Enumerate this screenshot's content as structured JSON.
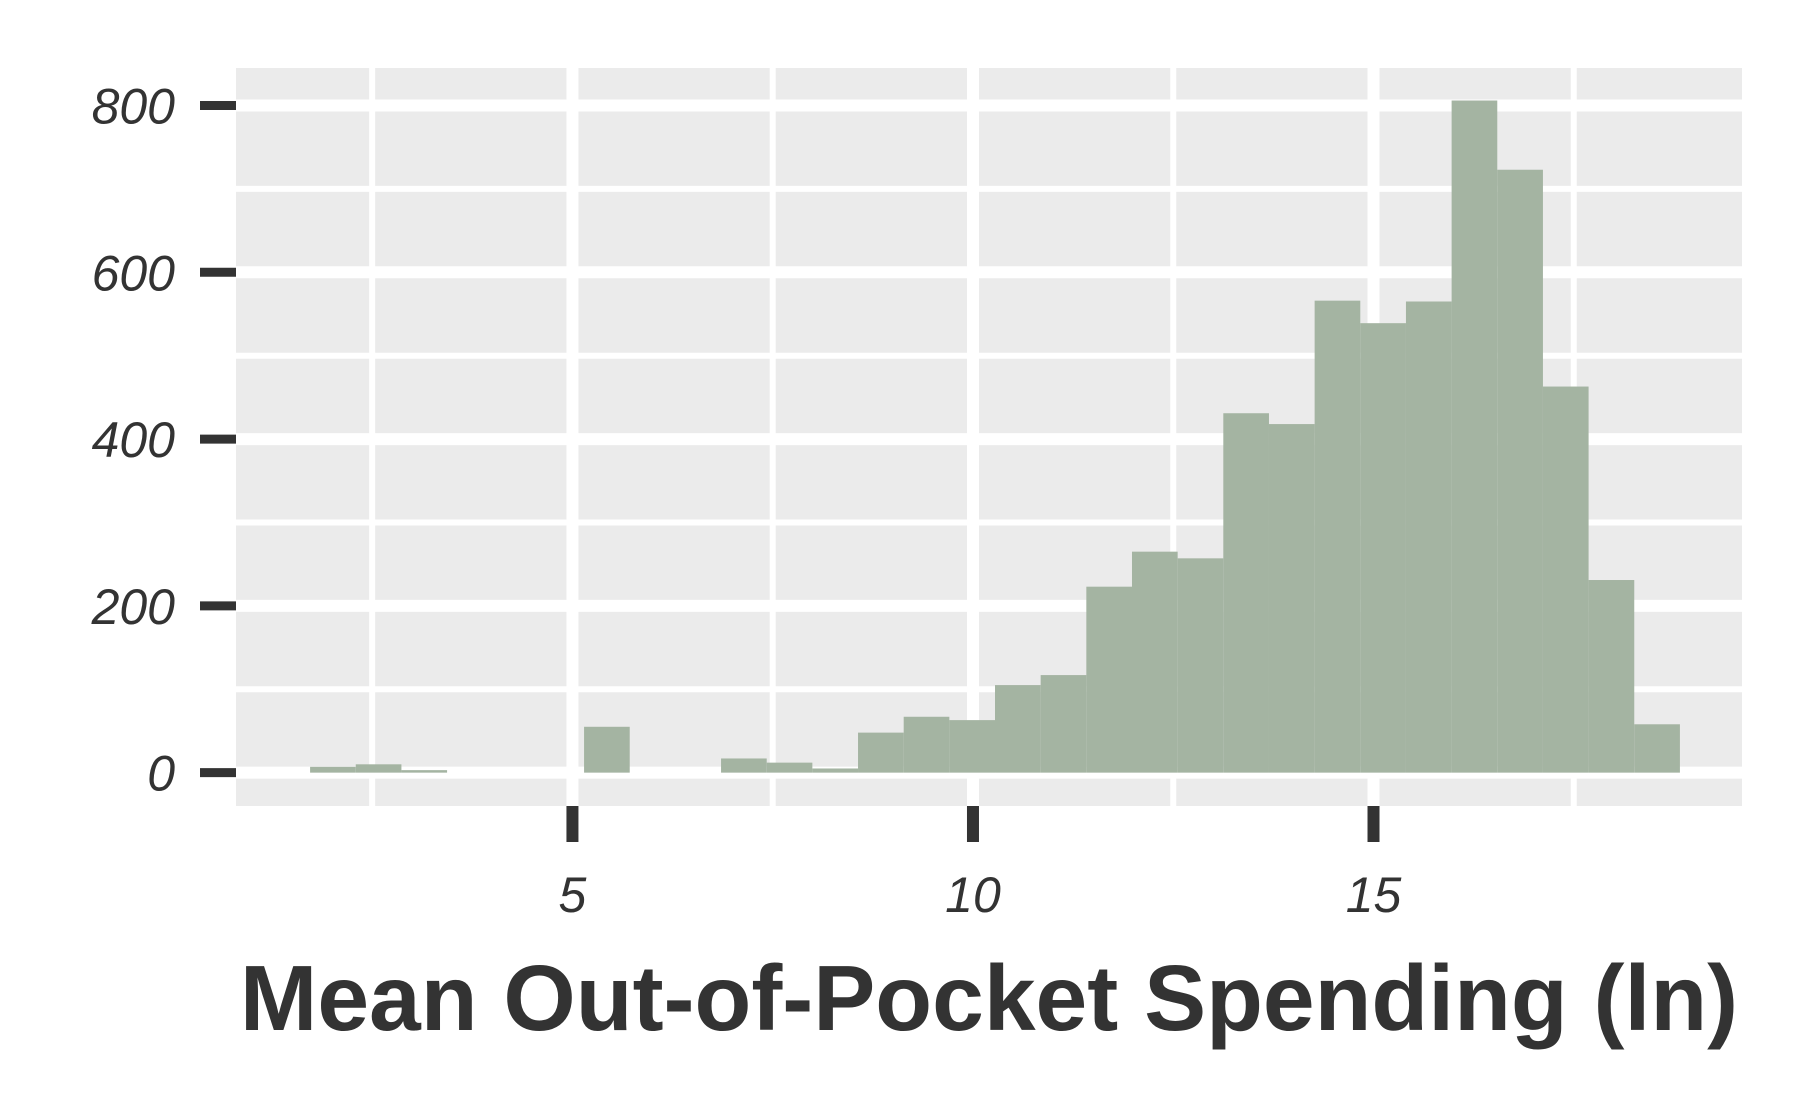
{
  "chart_data": {
    "type": "bar",
    "subtype": "histogram",
    "title": "",
    "xlabel": "Mean Out-of-Pocket Spending (ln)",
    "ylabel": "",
    "xlim": [
      0.8,
      19.6
    ],
    "ylim": [
      -40,
      845
    ],
    "x_ticks": [
      5,
      10,
      15
    ],
    "y_ticks": [
      0,
      200,
      400,
      600,
      800
    ],
    "bin_width": 0.57,
    "bins": [
      {
        "x": 2.01,
        "count": 7
      },
      {
        "x": 2.58,
        "count": 10
      },
      {
        "x": 3.15,
        "count": 3
      },
      {
        "x": 3.72,
        "count": 0
      },
      {
        "x": 4.29,
        "count": 0
      },
      {
        "x": 4.86,
        "count": 0
      },
      {
        "x": 5.43,
        "count": 55
      },
      {
        "x": 6.0,
        "count": 0
      },
      {
        "x": 6.57,
        "count": 0
      },
      {
        "x": 7.14,
        "count": 17
      },
      {
        "x": 7.71,
        "count": 12
      },
      {
        "x": 8.28,
        "count": 5
      },
      {
        "x": 8.85,
        "count": 48
      },
      {
        "x": 9.42,
        "count": 67
      },
      {
        "x": 9.99,
        "count": 63
      },
      {
        "x": 10.56,
        "count": 105
      },
      {
        "x": 11.13,
        "count": 117
      },
      {
        "x": 11.7,
        "count": 223
      },
      {
        "x": 12.27,
        "count": 265
      },
      {
        "x": 12.84,
        "count": 257
      },
      {
        "x": 13.41,
        "count": 431
      },
      {
        "x": 13.98,
        "count": 418
      },
      {
        "x": 14.55,
        "count": 566
      },
      {
        "x": 15.12,
        "count": 539
      },
      {
        "x": 15.69,
        "count": 565
      },
      {
        "x": 16.26,
        "count": 806
      },
      {
        "x": 16.83,
        "count": 723
      },
      {
        "x": 17.4,
        "count": 463
      },
      {
        "x": 17.97,
        "count": 231
      },
      {
        "x": 18.54,
        "count": 58
      }
    ],
    "grid": true,
    "legend": "none",
    "colors": {
      "panel": "#ebebeb",
      "grid": "#ffffff",
      "bar": "#a4b4a2",
      "text": "#333333"
    }
  }
}
